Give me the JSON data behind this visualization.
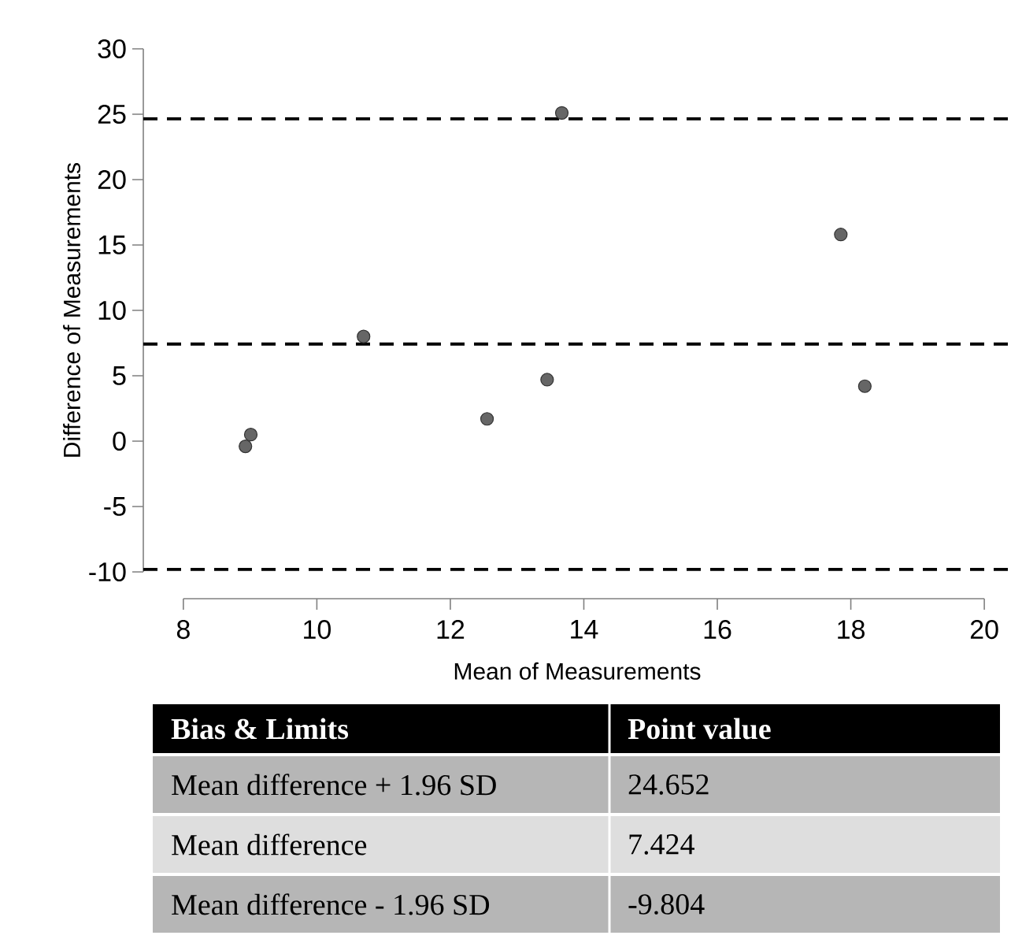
{
  "chart_data": {
    "type": "scatter",
    "xlabel": "Mean of Measurements",
    "ylabel": "Difference of Measurements",
    "x": [
      8.93,
      9.01,
      10.7,
      12.55,
      13.45,
      13.67,
      17.85,
      18.21
    ],
    "values": [
      -0.4,
      0.5,
      8.0,
      1.7,
      4.7,
      25.1,
      15.8,
      4.2
    ],
    "color": "#666666",
    "marker": "circle",
    "xlim": [
      7.4,
      20.4
    ],
    "ylim": [
      -10,
      30
    ],
    "xticks": [
      8,
      10,
      12,
      14,
      16,
      18,
      20
    ],
    "yticks": [
      -10,
      -5,
      0,
      5,
      10,
      15,
      20,
      25,
      30
    ],
    "ref_lines": [
      {
        "axis": "y",
        "value": 24.652,
        "color": "#000000",
        "line_style": "dashed"
      },
      {
        "axis": "y",
        "value": 7.424,
        "color": "#000000",
        "line_style": "dashed"
      },
      {
        "axis": "y",
        "value": -9.804,
        "color": "#000000",
        "line_style": "dashed"
      }
    ],
    "annotations": [
      "Bias & Limits",
      "Point value",
      "Mean difference + 1.96 SD",
      "24.652",
      "Mean difference",
      "7.424",
      "Mean difference - 1.96 SD",
      "-9.804"
    ]
  }
}
